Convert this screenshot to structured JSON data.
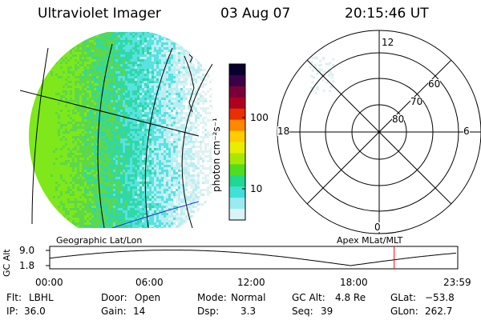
{
  "header": {
    "instrument": "Ultraviolet Imager",
    "date": "03 Aug 07",
    "time": "20:15:46 UT"
  },
  "colorbar": {
    "unit": "photon cm⁻²s⁻¹",
    "ticks": [
      "100",
      "10"
    ],
    "colors": [
      "#0a0030",
      "#3a0048",
      "#7a0038",
      "#b00020",
      "#e83000",
      "#ff8800",
      "#ffcc00",
      "#e8ee00",
      "#a8e800",
      "#50dd20",
      "#20d890",
      "#40e0d8",
      "#9aeaf0",
      "#d8f4f4"
    ]
  },
  "left_panel": {
    "label": "Geographic Lat/Lon"
  },
  "right_panel": {
    "label": "Apex  MLat/MLT",
    "mlt_labels": [
      "12",
      "18",
      "6",
      "0"
    ],
    "mlat_labels": [
      "60",
      "70",
      "80"
    ]
  },
  "altitude_plot": {
    "ylabel": "GC Alt",
    "yticks": [
      "9.0",
      "1.8"
    ],
    "xticks": [
      "00:00",
      "06:00",
      "12:00",
      "18:00",
      "23:59"
    ],
    "current_time_hours": 20.26,
    "marker_color": "#ff0000"
  },
  "status": {
    "rows": [
      [
        {
          "label": "Flt:",
          "value": "LBHL"
        },
        {
          "label": "Door:",
          "value": "Open"
        },
        {
          "label": "Mode:",
          "value": "Normal"
        },
        {
          "label": "GC Alt:",
          "value": "4.8 Re"
        },
        {
          "label": "GLat:",
          "value": "−53.8"
        }
      ],
      [
        {
          "label": "IP:",
          "value": "36.0"
        },
        {
          "label": "Gain:",
          "value": "14"
        },
        {
          "label": "Dsp:",
          "value": "3.3"
        },
        {
          "label": "Seq:",
          "value": "39"
        },
        {
          "label": "GLon:",
          "value": "262.7"
        }
      ]
    ]
  }
}
